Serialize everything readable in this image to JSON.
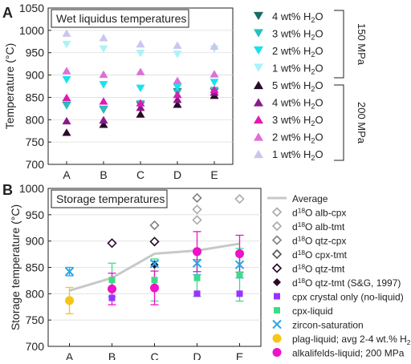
{
  "colors": {
    "teal_dark": "#1c6b66",
    "teal": "#28bfbf",
    "cyan": "#19e1f0",
    "cyan_light": "#aaf3fa",
    "purple_dark": "#2a0a28",
    "purple": "#8a1a8a",
    "magenta": "#e01ab4",
    "magenta_light": "#de6ed8",
    "lavender": "#c9c6ef",
    "avg_line": "#c8c8c8",
    "grey_diamond": "#aaaaaa",
    "mid_diamond": "#808080",
    "dark_diamond": "#555555",
    "cpx_crystal": "#9933ff",
    "cpx_liquid": "#3ddc84",
    "zircon": "#2aa8e8",
    "plag": "#f5c518",
    "alkali": "#ee12c8"
  },
  "chart_data": [
    {
      "panel_label": "A",
      "type": "scatter",
      "title": "Wet liquidus temperatures",
      "xlabel": "",
      "ylabel": "Temperature (°C)",
      "categories": [
        "A",
        "B",
        "C",
        "D",
        "E"
      ],
      "ylim": [
        700,
        1050
      ],
      "yticks": [
        700,
        750,
        800,
        850,
        900,
        950,
        1000,
        1050
      ],
      "group_labels": [
        "150 MPa",
        "200 MPa"
      ],
      "series": [
        {
          "name": "4 wt% H2O",
          "legend": [
            "4 wt% H",
            "2",
            "O"
          ],
          "group": "150 MPa",
          "marker": "tri-down",
          "color": "teal_dark",
          "values": [
            832,
            822,
            832,
            862,
            862
          ]
        },
        {
          "name": "3 wt% H2O",
          "legend": [
            "3 wt% H",
            "2",
            "O"
          ],
          "group": "150 MPa",
          "marker": "tri-down",
          "color": "teal",
          "values": [
            831,
            823,
            835,
            860,
            865
          ]
        },
        {
          "name": "2 wt% H2O",
          "legend": [
            "2 wt% H",
            "2",
            "O"
          ],
          "group": "150 MPa",
          "marker": "tri-down",
          "color": "cyan",
          "values": [
            889,
            878,
            870,
            872,
            883
          ]
        },
        {
          "name": "1 wt% H2O",
          "legend": [
            "1 wt% H",
            "2",
            "O"
          ],
          "group": "150 MPa",
          "marker": "tri-down",
          "color": "cyan_light",
          "values": [
            968,
            958,
            948,
            946,
            958
          ]
        },
        {
          "name": "5 wt% H2O",
          "legend": [
            "5 wt% H",
            "2",
            "O"
          ],
          "group": "200 MPa",
          "marker": "tri-up",
          "color": "purple_dark",
          "values": [
            772,
            790,
            813,
            835,
            855
          ]
        },
        {
          "name": "4 wt% H2O",
          "legend": [
            "4 wt% H",
            "2",
            "O"
          ],
          "group": "200 MPa",
          "marker": "tri-up",
          "color": "purple",
          "values": [
            798,
            800,
            828,
            846,
            862
          ]
        },
        {
          "name": "3 wt% H2O",
          "legend": [
            "3 wt% H",
            "2",
            "O"
          ],
          "group": "200 MPa",
          "marker": "tri-up",
          "color": "magenta",
          "values": [
            850,
            842,
            838,
            857,
            868
          ]
        },
        {
          "name": "2 wt% H2O",
          "legend": [
            "2 wt% H",
            "2",
            "O"
          ],
          "group": "200 MPa",
          "marker": "tri-up",
          "color": "magenta_light",
          "values": [
            910,
            902,
            908,
            888,
            903
          ]
        },
        {
          "name": "1 wt% H2O",
          "legend": [
            "1 wt% H",
            "2",
            "O"
          ],
          "group": "200 MPa",
          "marker": "tri-up",
          "color": "lavender",
          "values": [
            994,
            984,
            970,
            967,
            965
          ]
        }
      ]
    },
    {
      "panel_label": "B",
      "type": "scatter",
      "title": "Storage temperatures",
      "xlabel": "",
      "ylabel": "Storage temperature (°C)",
      "categories": [
        "A",
        "B",
        "C",
        "D",
        "E"
      ],
      "ylim": [
        700,
        1000
      ],
      "yticks": [
        700,
        750,
        800,
        850,
        900,
        950,
        1000
      ],
      "series": [
        {
          "name": "Average",
          "legend": [
            "Average",
            "",
            ""
          ],
          "kind": "line",
          "color": "avg_line",
          "values": [
            806,
            830,
            876,
            882,
            895
          ]
        },
        {
          "name": "d18O alb-cpx",
          "legend": [
            "d",
            "18",
            "O alb-cpx"
          ],
          "marker": "diamond-open",
          "color": "grey_diamond",
          "values": [
            null,
            null,
            null,
            960,
            980
          ]
        },
        {
          "name": "d18O alb-tmt",
          "legend": [
            "d",
            "18",
            "O alb-tmt"
          ],
          "marker": "diamond-open",
          "color": "grey_diamond",
          "values": [
            null,
            null,
            null,
            940,
            null
          ]
        },
        {
          "name": "d18O qtz-cpx",
          "legend": [
            "d",
            "18",
            "O qtz-cpx"
          ],
          "marker": "diamond-open",
          "color": "mid_diamond",
          "values": [
            null,
            null,
            930,
            982,
            null
          ]
        },
        {
          "name": "d18O cpx-tmt",
          "legend": [
            "d",
            "18",
            "O cpx-tmt"
          ],
          "marker": "diamond-open",
          "color": "dark_diamond",
          "values": [
            null,
            null,
            null,
            null,
            null
          ]
        },
        {
          "name": "d18O qtz-tmt",
          "legend": [
            "d",
            "18",
            "O qtz-tmt"
          ],
          "marker": "diamond-open",
          "color": "purple_dark",
          "values": [
            null,
            896,
            899,
            null,
            null
          ]
        },
        {
          "name": "d18O qtz-tmt (S&G, 1997)",
          "legend": [
            "d",
            "18",
            "O qtz-tmt (S&G, 1997)"
          ],
          "marker": "diamond-filled",
          "color": "purple_dark",
          "values": [
            null,
            null,
            855,
            null,
            null
          ]
        },
        {
          "name": "cpx crystal only (no-liquid)",
          "legend": [
            "cpx crystal only (no-liquid)",
            "",
            ""
          ],
          "marker": "square",
          "color": "cpx_crystal",
          "values": [
            null,
            792,
            null,
            800,
            800
          ]
        },
        {
          "name": "cpx-liquid",
          "legend": [
            "cpx-liquid",
            "",
            ""
          ],
          "marker": "square",
          "color": "cpx_liquid",
          "values": [
            null,
            826,
            826,
            830,
            836
          ],
          "err": [
            null,
            32,
            40,
            35,
            50
          ]
        },
        {
          "name": "zircon-saturation",
          "legend": [
            "zircon-saturation",
            "",
            ""
          ],
          "marker": "x",
          "color": "zircon",
          "values": [
            842,
            null,
            857,
            858,
            855
          ],
          "err": [
            8,
            null,
            5,
            22,
            25
          ]
        },
        {
          "name": "plag-liquid; avg 2-4 wt.% H2O",
          "legend": [
            "plag-liquid; avg 2-4 wt.% H",
            "2",
            "O"
          ],
          "marker": "circle",
          "color": "plag",
          "values": [
            787,
            null,
            null,
            null,
            null
          ],
          "err": [
            25,
            null,
            null,
            null,
            null
          ]
        },
        {
          "name": "alkalifelds-liquid; 200 MPa",
          "legend": [
            "alkalifelds-liquid; 200 MPa",
            "",
            ""
          ],
          "marker": "circle",
          "color": "alkali",
          "values": [
            null,
            809,
            811,
            880,
            876
          ],
          "err": [
            null,
            30,
            32,
            38,
            35
          ]
        }
      ]
    }
  ]
}
